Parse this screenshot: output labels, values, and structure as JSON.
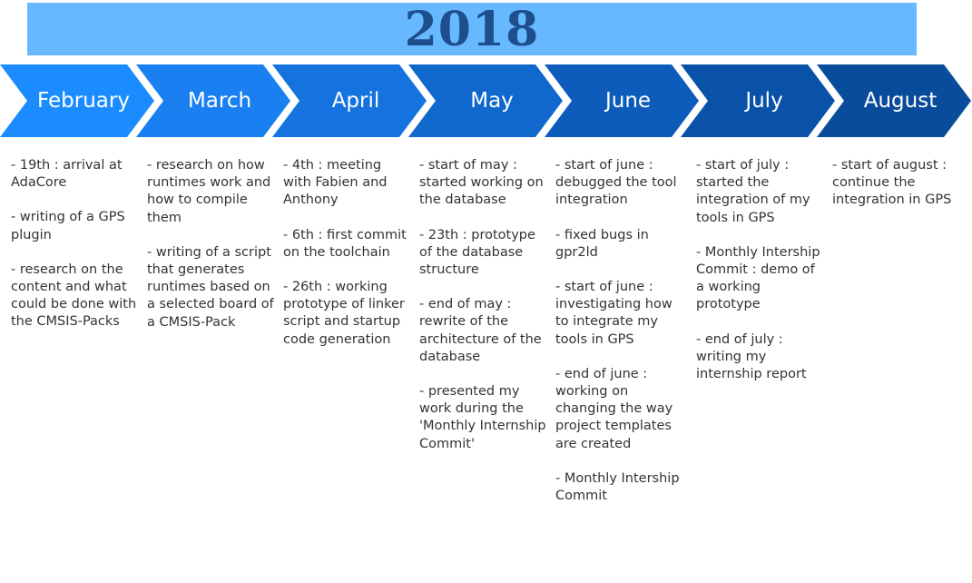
{
  "year": "2018",
  "months": [
    {
      "name": "February",
      "color": "#1a8cff",
      "entries": [
        "- 19th : arrival at AdaCore",
        "- writing of a GPS plugin",
        "- research on the content and what could be done with the CMSIS-Packs"
      ]
    },
    {
      "name": "March",
      "color": "#1a80f2",
      "entries": [
        "- research on how runtimes work and how to compile them",
        "- writing of a script that generates runtimes based on a selected board of a CMSIS-Pack"
      ]
    },
    {
      "name": "April",
      "color": "#1573e0",
      "entries": [
        "- 4th : meeting with Fabien and Anthony",
        "- 6th : first commit on the toolchain",
        "- 26th : working prototype of linker script and startup code generation"
      ]
    },
    {
      "name": "May",
      "color": "#1067cc",
      "entries": [
        "- start of may : started working on the database",
        "- 23th : prototype of the database structure",
        "- end of may : rewrite of the architecture of the database",
        "- presented my work during the 'Monthly Internship Commit'"
      ]
    },
    {
      "name": "June",
      "color": "#0d5cbb",
      "entries": [
        "- start of june : debugged the tool integration",
        "- fixed bugs in gpr2ld",
        "- start of june : investigating how to integrate my tools in GPS",
        "- end of june : working on changing the way project templates are created",
        "- Monthly Intership Commit"
      ]
    },
    {
      "name": "July",
      "color": "#0a51a8",
      "entries": [
        "- start of july : started the integration of my tools in GPS",
        "- Monthly Intership Commit : demo of a working prototype",
        "- end of july : writing my internship report"
      ]
    },
    {
      "name": "August",
      "color": "#0a4c9c",
      "entries": [
        "- start of august : continue the integration in GPS"
      ]
    }
  ]
}
